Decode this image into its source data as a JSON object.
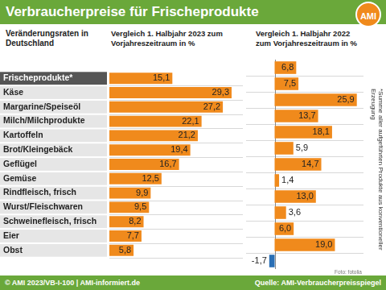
{
  "title": "Verbraucherpreise für Frischeprodukte",
  "logo": "AMI",
  "row_header": "Veränderungsraten in Deutschland",
  "side_note": "*Summe aller aufgeführten Produkte aus konventioneller Erzeugung",
  "photo_credit": "Foto: fotolia",
  "footer_left": "© AMI 2023/VB-I-100 | AMI-informiert.de",
  "footer_right": "Quelle: AMI-Verbraucherpreisspiegel",
  "chart_data": [
    {
      "type": "bar",
      "orientation": "horizontal",
      "title": "Vergleich 1. Halbjahr 2023 zum Vorjahreszeitraum in %",
      "categories": [
        "Frischeprodukte*",
        "Käse",
        "Margarine/Speiseöl",
        "Milch/Milchprodukte",
        "Kartoffeln",
        "Brot/Kleingebäck",
        "Geflügel",
        "Gemüse",
        "Rindfleisch, frisch",
        "Wurst/Fleischwaren",
        "Schweinefleisch, frisch",
        "Eier",
        "Obst"
      ],
      "values": [
        15.1,
        29.3,
        27.2,
        22.1,
        21.2,
        19.4,
        16.7,
        12.5,
        9.9,
        9.5,
        8.2,
        7.7,
        5.8
      ],
      "value_labels": [
        "15,1",
        "29,3",
        "27,2",
        "22,1",
        "21,2",
        "19,4",
        "16,7",
        "12,5",
        "9,9",
        "9,5",
        "8,2",
        "7,7",
        "5,8"
      ],
      "color": "#f08a1c",
      "xlim": [
        0,
        32
      ],
      "grid": false,
      "data_labels": true,
      "tick_labels": "y"
    },
    {
      "type": "bar",
      "orientation": "horizontal",
      "title": "Vergleich 1. Halbjahr 2022 zum Vorjahreszeitraum in %",
      "categories": [
        "Frischeprodukte*",
        "Käse",
        "Margarine/Speiseöl",
        "Milch/Milchprodukte",
        "Kartoffeln",
        "Brot/Kleingebäck",
        "Geflügel",
        "Gemüse",
        "Rindfleisch, frisch",
        "Wurst/Fleischwaren",
        "Schweinefleisch, frisch",
        "Eier",
        "Obst"
      ],
      "values": [
        6.8,
        7.5,
        25.9,
        13.7,
        18.1,
        5.9,
        14.7,
        1.4,
        13.0,
        3.6,
        6.0,
        19.0,
        -1.7
      ],
      "value_labels": [
        "6,8",
        "7,5",
        "25,9",
        "13,7",
        "18,1",
        "5,9",
        "14,7",
        "1,4",
        "13,0",
        "3,6",
        "6,0",
        "19,0",
        "-1,7"
      ],
      "colors": [
        "#f08a1c",
        "#f08a1c",
        "#f08a1c",
        "#f08a1c",
        "#f08a1c",
        "#f08a1c",
        "#f08a1c",
        "#f08a1c",
        "#f08a1c",
        "#f08a1c",
        "#f08a1c",
        "#f08a1c",
        "#2a6fb5"
      ],
      "xlim": [
        -9,
        28
      ],
      "grid": false,
      "data_labels": true,
      "tick_labels": false
    }
  ]
}
